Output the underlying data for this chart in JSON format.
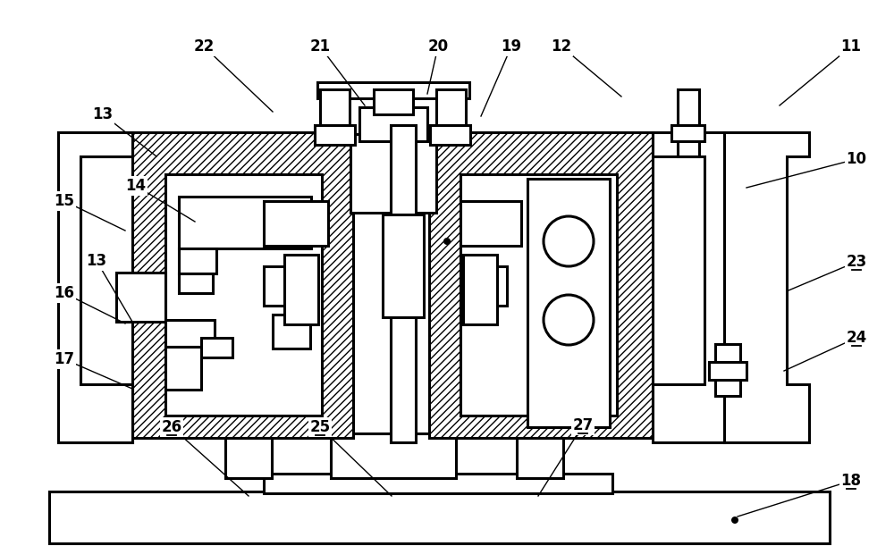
{
  "bg": "#ffffff",
  "lw": 2.2,
  "fs": 12,
  "annotations": [
    [
      "10",
      958,
      178,
      835,
      210,
      false
    ],
    [
      "11",
      952,
      52,
      872,
      118,
      false
    ],
    [
      "12",
      628,
      52,
      695,
      108,
      false
    ],
    [
      "13",
      115,
      128,
      175,
      175,
      false
    ],
    [
      "13",
      108,
      292,
      148,
      360,
      false
    ],
    [
      "14",
      152,
      208,
      218,
      248,
      false
    ],
    [
      "15",
      72,
      225,
      140,
      258,
      false
    ],
    [
      "16",
      72,
      328,
      140,
      362,
      false
    ],
    [
      "17",
      72,
      402,
      148,
      435,
      false
    ],
    [
      "18",
      952,
      538,
      825,
      578,
      true
    ],
    [
      "19",
      572,
      52,
      538,
      130,
      false
    ],
    [
      "20",
      490,
      52,
      478,
      105,
      false
    ],
    [
      "21",
      358,
      52,
      408,
      118,
      false
    ],
    [
      "22",
      228,
      52,
      305,
      125,
      false
    ],
    [
      "23",
      958,
      293,
      882,
      325,
      true
    ],
    [
      "24",
      958,
      378,
      877,
      415,
      true
    ],
    [
      "25",
      358,
      478,
      438,
      555,
      true
    ],
    [
      "26",
      192,
      478,
      278,
      555,
      true
    ],
    [
      "27",
      652,
      476,
      602,
      555,
      true
    ]
  ]
}
